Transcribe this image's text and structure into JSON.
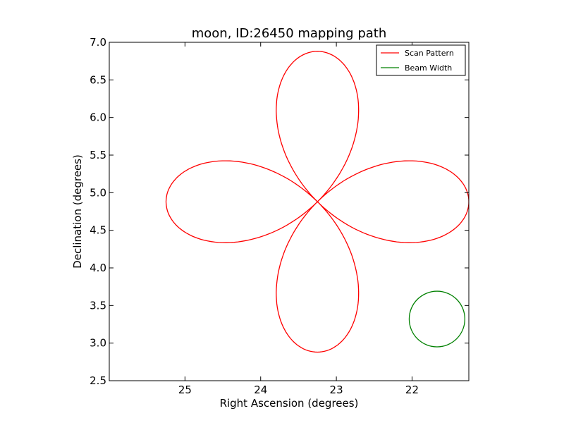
{
  "chart_data": {
    "type": "line",
    "title": "moon, ID:26450 mapping path",
    "xlabel": "Right Ascension (degrees)",
    "ylabel": "Declination (degrees)",
    "xlim": [
      26.0,
      21.25
    ],
    "ylim": [
      2.5,
      7.0
    ],
    "x_inverted": true,
    "xticks": [
      25,
      24,
      23,
      22
    ],
    "xtick_labels": [
      "25",
      "24",
      "23",
      "22"
    ],
    "yticks": [
      2.5,
      3.0,
      3.5,
      4.0,
      4.5,
      5.0,
      5.5,
      6.0,
      6.5,
      7.0
    ],
    "ytick_labels": [
      "2.5",
      "3.0",
      "3.5",
      "4.0",
      "4.5",
      "5.0",
      "5.5",
      "6.0",
      "6.5",
      "7.0"
    ],
    "grid": false,
    "legend_position": "top-right",
    "series": [
      {
        "name": "Scan Pattern",
        "color": "#ff0000",
        "shape": "four-petal rose",
        "center": [
          23.25,
          4.88
        ],
        "petal_length": 2.0,
        "petal_half_width": 0.55,
        "start_ra": 25.25
      },
      {
        "name": "Beam Width",
        "color": "#008000",
        "shape": "circle",
        "center": [
          21.67,
          3.32
        ],
        "radius": 0.37
      }
    ]
  }
}
